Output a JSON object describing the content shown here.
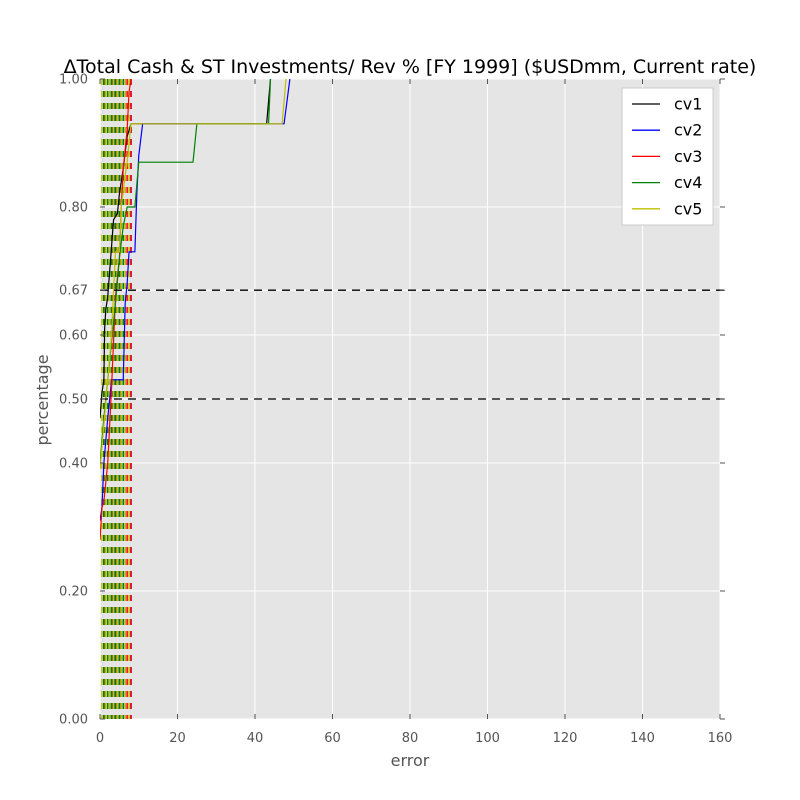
{
  "chart_data": {
    "type": "line",
    "title": "ΔTotal Cash & ST Investments/ Rev % [FY 1999] ($USDmm, Current rate)",
    "xlabel": "error",
    "ylabel": "percentage",
    "xlim": [
      0,
      160
    ],
    "ylim": [
      0,
      1
    ],
    "xticks": [
      0,
      20,
      40,
      60,
      80,
      100,
      120,
      140,
      160
    ],
    "xtick_labels": [
      "0",
      "20",
      "40",
      "60",
      "80",
      "100",
      "120",
      "140",
      "160"
    ],
    "yticks": [
      0.0,
      0.2,
      0.4,
      0.5,
      0.6,
      0.67,
      0.8,
      1.0
    ],
    "ytick_labels": [
      "0.00",
      "0.20",
      "0.40",
      "0.50",
      "0.60",
      "0.67",
      "0.80",
      "1.00"
    ],
    "grid": true,
    "legend_position": "top-right",
    "hlines": [
      0.5,
      0.67
    ],
    "series": [
      {
        "name": "cv1",
        "color": "#000000",
        "points": [
          [
            0,
            0.47
          ],
          [
            0.5,
            0.51
          ],
          [
            1,
            0.53
          ],
          [
            1.2,
            0.61
          ],
          [
            1.5,
            0.64
          ],
          [
            2,
            0.66
          ],
          [
            2.5,
            0.7
          ],
          [
            3,
            0.74
          ],
          [
            3.5,
            0.78
          ],
          [
            4.5,
            0.79
          ],
          [
            5,
            0.82
          ],
          [
            6,
            0.86
          ],
          [
            7,
            0.91
          ],
          [
            8,
            0.93
          ],
          [
            43,
            0.93
          ],
          [
            44,
            1.0
          ]
        ],
        "vlines": [
          1.0,
          1.5,
          2.0,
          3.0,
          4.0,
          5.0
        ]
      },
      {
        "name": "cv2",
        "color": "#0000ff",
        "points": [
          [
            0,
            0.31
          ],
          [
            0.5,
            0.33
          ],
          [
            1,
            0.4
          ],
          [
            2,
            0.47
          ],
          [
            3,
            0.53
          ],
          [
            6,
            0.53
          ],
          [
            6.5,
            0.65
          ],
          [
            7,
            0.68
          ],
          [
            7.5,
            0.73
          ],
          [
            9,
            0.73
          ],
          [
            9.5,
            0.82
          ],
          [
            10,
            0.88
          ],
          [
            11,
            0.93
          ],
          [
            47.5,
            0.93
          ],
          [
            49,
            1.0
          ]
        ],
        "vlines": [
          2.0,
          3.5,
          5.0,
          6.5,
          8.0
        ]
      },
      {
        "name": "cv3",
        "color": "#ff0000",
        "points": [
          [
            0,
            0.28
          ],
          [
            0.5,
            0.33
          ],
          [
            1,
            0.34
          ],
          [
            2,
            0.4
          ],
          [
            2.5,
            0.46
          ],
          [
            3,
            0.52
          ],
          [
            3.5,
            0.59
          ],
          [
            4,
            0.66
          ],
          [
            5,
            0.72
          ],
          [
            5.5,
            0.8
          ],
          [
            6,
            0.86
          ],
          [
            7,
            0.92
          ],
          [
            7.5,
            0.98
          ],
          [
            8,
            1.0
          ]
        ],
        "vlines": [
          1.0,
          2.0,
          3.0,
          4.0,
          5.0,
          6.0,
          7.0,
          8.0
        ]
      },
      {
        "name": "cv4",
        "color": "#008000",
        "points": [
          [
            0,
            0.4
          ],
          [
            1,
            0.47
          ],
          [
            2,
            0.53
          ],
          [
            3,
            0.59
          ],
          [
            4,
            0.65
          ],
          [
            5,
            0.72
          ],
          [
            6,
            0.77
          ],
          [
            7,
            0.8
          ],
          [
            9,
            0.8
          ],
          [
            10,
            0.87
          ],
          [
            24,
            0.87
          ],
          [
            25,
            0.93
          ],
          [
            43.5,
            0.93
          ],
          [
            44,
            1.0
          ]
        ],
        "vlines": [
          1.0,
          2.0,
          3.0,
          4.0,
          5.0,
          6.0
        ]
      },
      {
        "name": "cv5",
        "color": "#bfbf00",
        "points": [
          [
            0,
            0.39
          ],
          [
            1,
            0.46
          ],
          [
            2,
            0.53
          ],
          [
            3,
            0.6
          ],
          [
            3.5,
            0.67
          ],
          [
            4,
            0.73
          ],
          [
            5,
            0.73
          ],
          [
            5.5,
            0.8
          ],
          [
            6.5,
            0.85
          ],
          [
            7,
            0.87
          ],
          [
            8,
            0.93
          ],
          [
            47,
            0.93
          ],
          [
            48,
            1.0
          ]
        ],
        "vlines": [
          0.5,
          1.5,
          2.5,
          3.5,
          4.5,
          5.5,
          6.5,
          7.5
        ]
      }
    ]
  }
}
